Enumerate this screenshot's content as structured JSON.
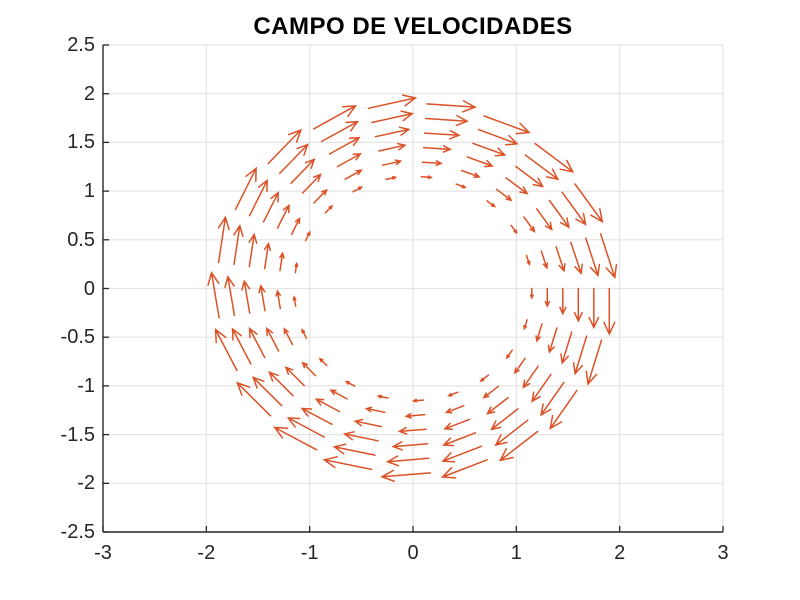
{
  "chart_data": {
    "type": "quiver",
    "title": "CAMPO DE VELOCIDADES",
    "xlabel": "",
    "ylabel": "",
    "xlim": [
      -3,
      3
    ],
    "ylim": [
      -2.5,
      2.5
    ],
    "x_ticks": [
      -3,
      -2,
      -1,
      0,
      1,
      2,
      3
    ],
    "x_tick_labels": [
      "-3",
      "-2",
      "-1",
      "0",
      "1",
      "2",
      "3"
    ],
    "y_ticks": [
      -2.5,
      -2,
      -1.5,
      -1,
      -0.5,
      0,
      0.5,
      1,
      1.5,
      2,
      2.5
    ],
    "y_tick_labels": [
      "-2.5",
      "-2",
      "-1.5",
      "-1",
      "-0.5",
      "0",
      "0.5",
      "1",
      "1.5",
      "2",
      "2.5"
    ],
    "grid": true,
    "legend": null,
    "field": {
      "description": "Tangential velocity field (Couette-type flow) on annulus 1 <= r <= 2, rotating clockwise; speed grows from ~0 at inner radius to maximum at outer radius",
      "direction": "clockwise",
      "tangent_unit_vector": "(sin(theta), -cos(theta))",
      "speed_formula": "v(r) = r - 1/r",
      "arrow_scale": 0.34,
      "polar_grid": {
        "theta_start_rad": 0,
        "theta_step_rad": 0.3,
        "theta_count": 21,
        "r_values": [
          1.15,
          1.3,
          1.45,
          1.6,
          1.75,
          1.9
        ]
      }
    },
    "style": {
      "arrow_color": "#DC5226",
      "grid_color": "#E4E4E4",
      "axis_color": "#262626",
      "tick_label_color": "#262626",
      "title_color": "#000000",
      "background_color": "#FFFFFF"
    }
  }
}
